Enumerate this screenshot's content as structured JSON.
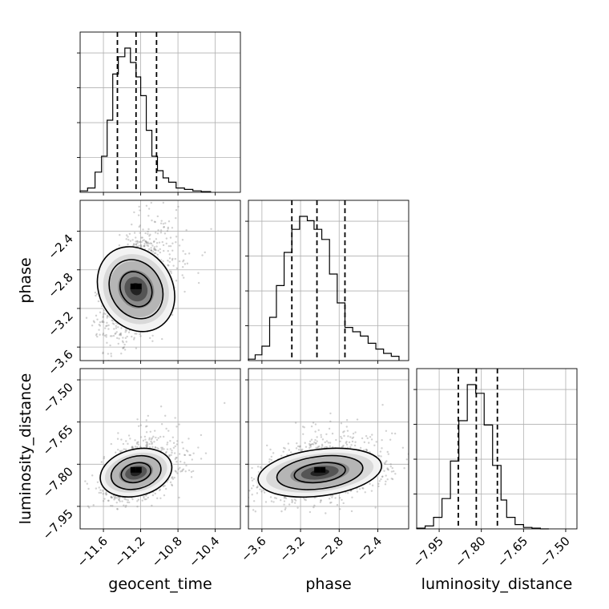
{
  "chart_data": {
    "type": "corner",
    "parameters": [
      "geocent_time",
      "phase",
      "luminosity_distance"
    ],
    "axis_labels": {
      "geocent_time": "geocent_time",
      "phase": "phase",
      "luminosity_distance": "luminosity_distance"
    },
    "ranges": {
      "geocent_time": [
        -11.85,
        -10.13
      ],
      "phase": [
        -3.74,
        -2.08
      ],
      "luminosity_distance": [
        -8.03,
        -7.46
      ]
    },
    "ticks": {
      "geocent_time": [
        -11.6,
        -11.2,
        -10.8,
        -10.4
      ],
      "phase": [
        -3.6,
        -3.2,
        -2.8,
        -2.4
      ],
      "luminosity_distance": [
        -7.95,
        -7.8,
        -7.65,
        -7.5
      ]
    },
    "tick_labels": {
      "geocent_time": [
        "−11.6",
        "−11.2",
        "−10.8",
        "−10.4"
      ],
      "phase": [
        "−3.6",
        "−3.2",
        "−2.8",
        "−2.4"
      ],
      "luminosity_distance": [
        "−7.95",
        "−7.80",
        "−7.65",
        "−7.50"
      ]
    },
    "quantiles": {
      "geocent_time": [
        -11.45,
        -11.25,
        -11.03
      ],
      "phase": [
        -3.29,
        -3.03,
        -2.74
      ],
      "luminosity_distance": [
        -7.882,
        -7.818,
        -7.743
      ]
    },
    "histograms": {
      "geocent_time": {
        "edges": [
          -11.85,
          -11.77,
          -11.69,
          -11.62,
          -11.56,
          -11.5,
          -11.44,
          -11.37,
          -11.31,
          -11.25,
          -11.2,
          -11.14,
          -11.08,
          -11.02,
          -10.96,
          -10.9,
          -10.82,
          -10.73,
          -10.64,
          -10.55,
          -10.45
        ],
        "counts": [
          0.01,
          0.03,
          0.14,
          0.25,
          0.5,
          0.82,
          0.94,
          1.0,
          0.9,
          0.8,
          0.67,
          0.43,
          0.25,
          0.15,
          0.1,
          0.07,
          0.03,
          0.02,
          0.01,
          0.005
        ]
      },
      "phase": {
        "edges": [
          -3.74,
          -3.67,
          -3.6,
          -3.52,
          -3.45,
          -3.37,
          -3.29,
          -3.21,
          -3.13,
          -3.06,
          -2.98,
          -2.9,
          -2.82,
          -2.74,
          -2.66,
          -2.58,
          -2.5,
          -2.42,
          -2.34,
          -2.26,
          -2.18
        ],
        "counts": [
          0.01,
          0.04,
          0.1,
          0.3,
          0.52,
          0.75,
          0.91,
          1.0,
          0.97,
          0.91,
          0.84,
          0.6,
          0.4,
          0.23,
          0.2,
          0.17,
          0.12,
          0.08,
          0.05,
          0.03
        ]
      },
      "luminosity_distance": {
        "edges": [
          -8.03,
          -8.0,
          -7.97,
          -7.94,
          -7.91,
          -7.88,
          -7.85,
          -7.82,
          -7.79,
          -7.76,
          -7.73,
          -7.71,
          -7.68,
          -7.65,
          -7.62,
          -7.59,
          -7.56
        ],
        "counts": [
          0.005,
          0.02,
          0.08,
          0.21,
          0.47,
          0.75,
          1.0,
          0.94,
          0.72,
          0.44,
          0.2,
          0.08,
          0.03,
          0.01,
          0.005,
          0.0
        ]
      }
    },
    "scatter": {
      "geocent_time__phase": {
        "x_center": -11.25,
        "y_center": -3.0,
        "x_sd": 0.17,
        "y_sd": 0.25,
        "correlation": 0.45
      },
      "geocent_time__luminosity_distance": {
        "x_center": -11.25,
        "y_center": -7.83,
        "x_sd": 0.17,
        "y_sd": 0.045,
        "correlation": 0.35
      },
      "phase__luminosity_distance": {
        "x_center": -3.0,
        "y_center": -7.83,
        "x_sd": 0.28,
        "y_sd": 0.045,
        "correlation": 0.3
      }
    },
    "grid": true
  }
}
